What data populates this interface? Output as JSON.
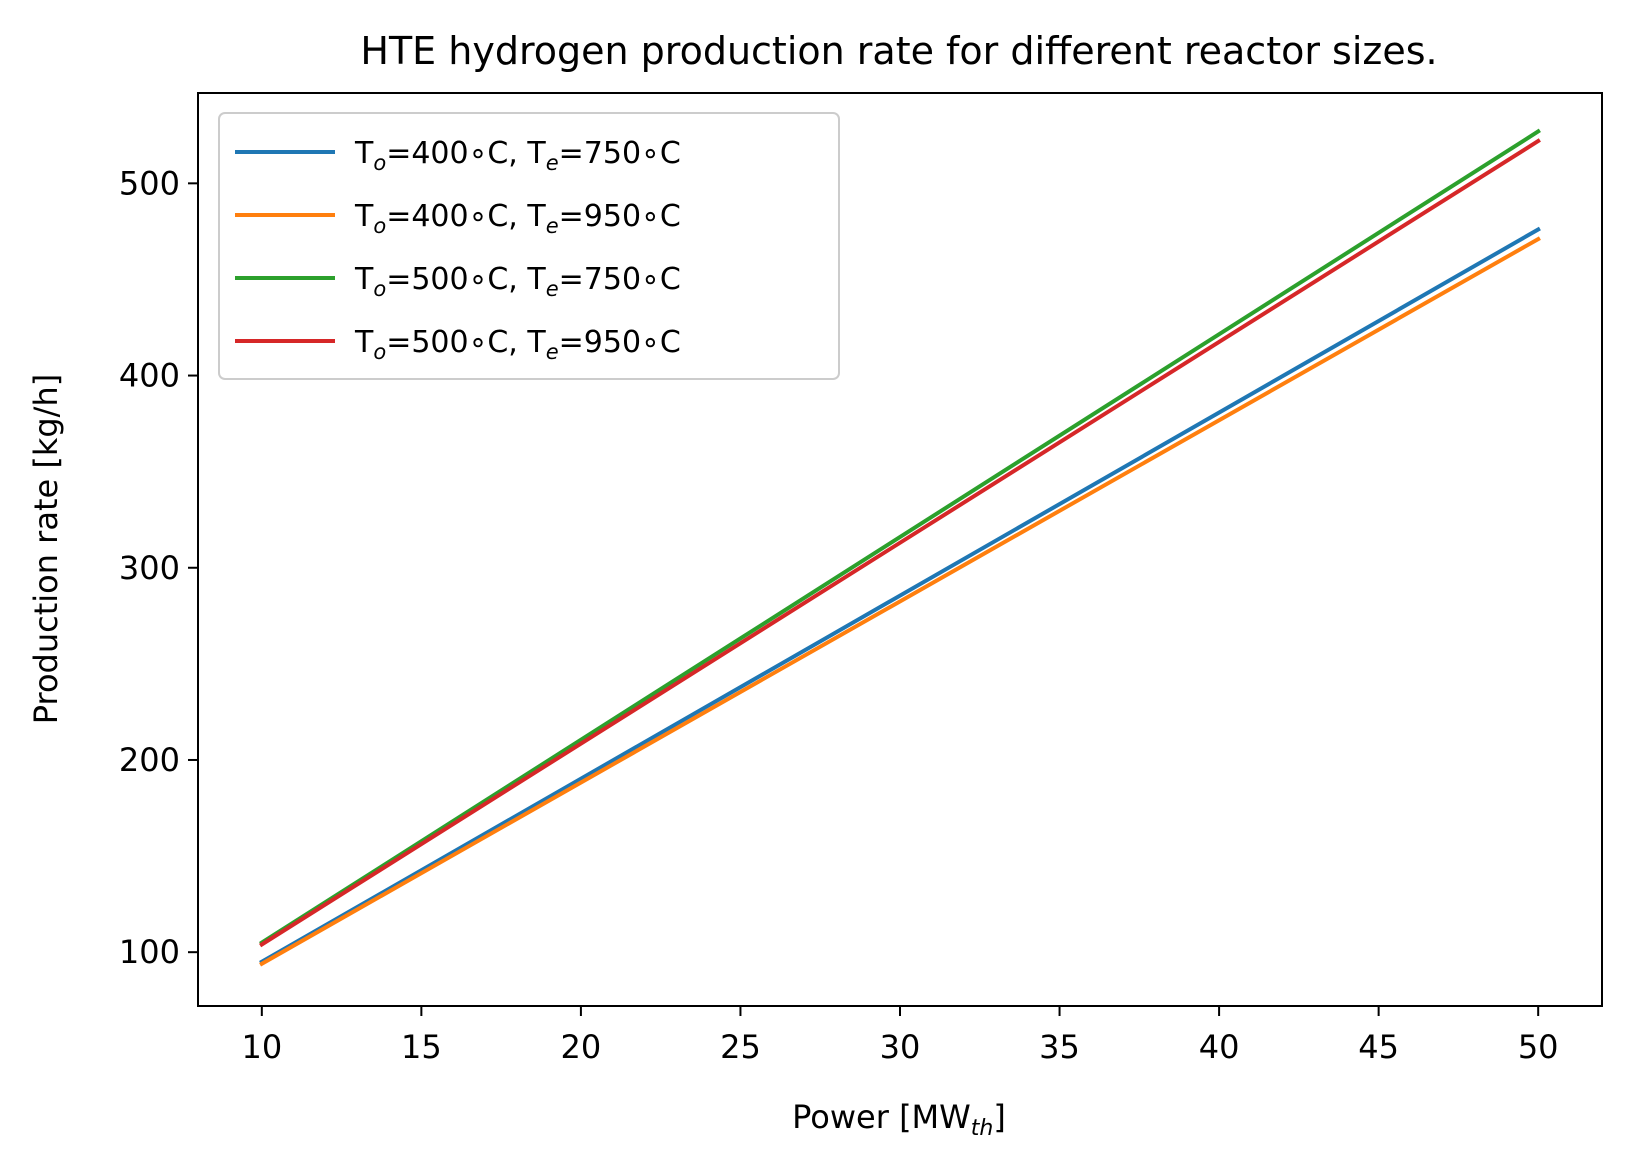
{
  "chart_data": {
    "type": "line",
    "title": "HTE hydrogen production rate for different reactor sizes.",
    "xlabel": "Power [MW",
    "xlabel_sub": "th",
    "xlabel_close": "]",
    "ylabel": "Production rate [kg/h]",
    "xlim": [
      8,
      52
    ],
    "ylim": [
      72,
      547
    ],
    "xticks": [
      10,
      15,
      20,
      25,
      30,
      35,
      40,
      45,
      50
    ],
    "yticks": [
      100,
      200,
      300,
      400,
      500
    ],
    "grid": false,
    "legend_position": "top-left",
    "series": [
      {
        "legend": {
          "a": "T",
          "a_sub": "o",
          "b": "=400∘C, T",
          "b_sub": "e",
          "c": "=750∘C"
        },
        "color": "#1f77b4",
        "x": [
          10,
          50
        ],
        "y": [
          95,
          476
        ]
      },
      {
        "legend": {
          "a": "T",
          "a_sub": "o",
          "b": "=400∘C, T",
          "b_sub": "e",
          "c": "=950∘C"
        },
        "color": "#ff7f0e",
        "x": [
          10,
          50
        ],
        "y": [
          94,
          471
        ]
      },
      {
        "legend": {
          "a": "T",
          "a_sub": "o",
          "b": "=500∘C, T",
          "b_sub": "e",
          "c": "=750∘C"
        },
        "color": "#2ca02c",
        "x": [
          10,
          50
        ],
        "y": [
          105,
          527
        ]
      },
      {
        "legend": {
          "a": "T",
          "a_sub": "o",
          "b": "=500∘C, T",
          "b_sub": "e",
          "c": "=950∘C"
        },
        "color": "#d62728",
        "x": [
          10,
          50
        ],
        "y": [
          104,
          522
        ]
      }
    ]
  }
}
